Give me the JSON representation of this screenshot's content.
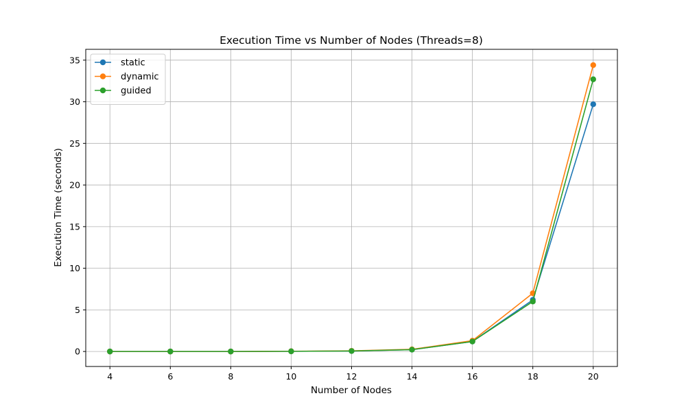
{
  "chart_data": {
    "type": "line",
    "title": "Execution Time vs Number of Nodes (Threads=8)",
    "xlabel": "Number of Nodes",
    "ylabel": "Execution Time (seconds)",
    "x": [
      4,
      6,
      8,
      10,
      12,
      14,
      16,
      18,
      20
    ],
    "xticks": [
      4,
      6,
      8,
      10,
      12,
      14,
      16,
      18,
      20
    ],
    "yticks": [
      0,
      5,
      10,
      15,
      20,
      25,
      30,
      35
    ],
    "xlim": [
      3.2,
      20.8
    ],
    "ylim": [
      -1.8,
      36.3
    ],
    "grid": true,
    "legend_position": "top-left",
    "series": [
      {
        "name": "static",
        "color": "#1f77b4",
        "marker": "circle",
        "values": [
          0.0,
          0.0,
          0.0,
          0.02,
          0.06,
          0.22,
          1.2,
          6.2,
          29.7
        ]
      },
      {
        "name": "dynamic",
        "color": "#ff7f0e",
        "marker": "circle",
        "values": [
          0.0,
          0.0,
          0.0,
          0.03,
          0.08,
          0.26,
          1.3,
          7.0,
          34.4
        ]
      },
      {
        "name": "guided",
        "color": "#2ca02c",
        "marker": "circle",
        "values": [
          0.0,
          0.0,
          0.0,
          0.02,
          0.06,
          0.22,
          1.2,
          6.0,
          32.7
        ]
      }
    ]
  }
}
